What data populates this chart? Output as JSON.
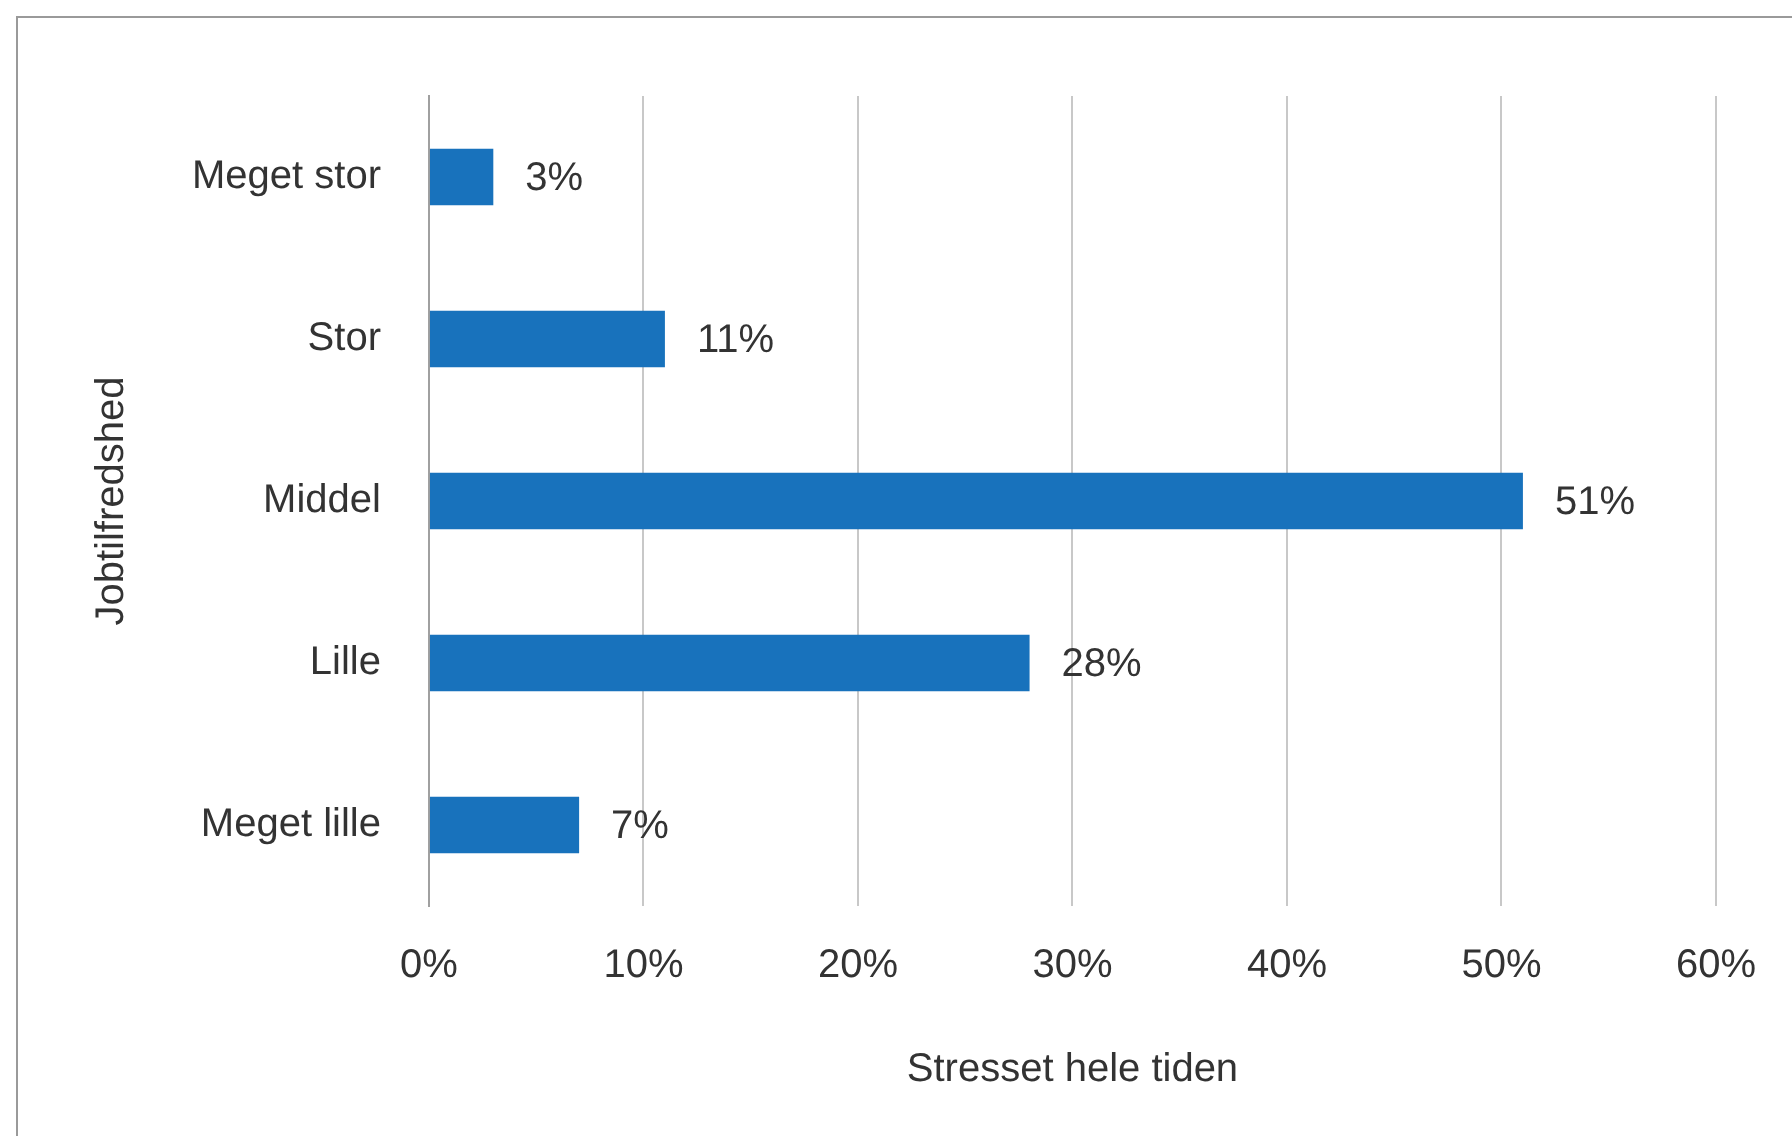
{
  "chart_data": {
    "type": "bar",
    "orientation": "horizontal",
    "xlabel": "Stresset hele tiden",
    "ylabel": "Jobtilfredshed",
    "categories": [
      "Meget stor",
      "Stor",
      "Middel",
      "Lille",
      "Meget lille"
    ],
    "values": [
      3,
      11,
      51,
      28,
      7
    ],
    "value_labels": [
      "3%",
      "11%",
      "51%",
      "28%",
      "7%"
    ],
    "color": "#1872bc",
    "xlim": [
      0,
      60
    ],
    "xticks": [
      {
        "value": 0,
        "label": "0%"
      },
      {
        "value": 10,
        "label": "10%"
      },
      {
        "value": 20,
        "label": "20%"
      },
      {
        "value": 30,
        "label": "30%"
      },
      {
        "value": 40,
        "label": "40%"
      },
      {
        "value": 50,
        "label": "50%"
      },
      {
        "value": 60,
        "label": "60%"
      }
    ],
    "grid": "x"
  }
}
